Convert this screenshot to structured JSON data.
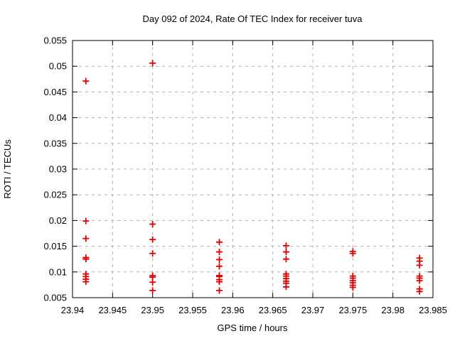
{
  "chart_data": {
    "type": "scatter",
    "title": "Day 092 of 2024, Rate Of TEC Index for receiver tuva",
    "xlabel": "GPS time / hours",
    "ylabel": "ROTI / TECUs",
    "xlim": [
      23.94,
      23.985
    ],
    "ylim": [
      0.005,
      0.055
    ],
    "xticks": [
      "23.94",
      "23.945",
      "23.95",
      "23.955",
      "23.96",
      "23.965",
      "23.97",
      "23.975",
      "23.98",
      "23.985"
    ],
    "yticks": [
      "0.005",
      "0.01",
      "0.015",
      "0.02",
      "0.025",
      "0.03",
      "0.035",
      "0.04",
      "0.045",
      "0.05",
      "0.055"
    ],
    "grid": true,
    "legend": false,
    "marker": "plus",
    "marker_color": "#e00000",
    "grid_color": "#b0b0b0",
    "border_color": "#000000",
    "series": [
      {
        "name": "ROTI",
        "points": [
          [
            23.94167,
            0.0471
          ],
          [
            23.94167,
            0.0199
          ],
          [
            23.94167,
            0.0165
          ],
          [
            23.94167,
            0.0128
          ],
          [
            23.94167,
            0.0125
          ],
          [
            23.94167,
            0.0096
          ],
          [
            23.94167,
            0.0091
          ],
          [
            23.94167,
            0.0086
          ],
          [
            23.94167,
            0.0081
          ],
          [
            23.95,
            0.0506
          ],
          [
            23.95,
            0.0193
          ],
          [
            23.95,
            0.0163
          ],
          [
            23.95,
            0.0136
          ],
          [
            23.95,
            0.0093
          ],
          [
            23.95,
            0.009
          ],
          [
            23.95,
            0.008
          ],
          [
            23.95,
            0.0064
          ],
          [
            23.95833,
            0.0158
          ],
          [
            23.95833,
            0.0139
          ],
          [
            23.95833,
            0.0124
          ],
          [
            23.95833,
            0.0111
          ],
          [
            23.95833,
            0.0093
          ],
          [
            23.95833,
            0.0091
          ],
          [
            23.95833,
            0.0085
          ],
          [
            23.95833,
            0.0081
          ],
          [
            23.95833,
            0.0064
          ],
          [
            23.96667,
            0.0151
          ],
          [
            23.96667,
            0.0139
          ],
          [
            23.96667,
            0.0125
          ],
          [
            23.96667,
            0.0096
          ],
          [
            23.96667,
            0.0092
          ],
          [
            23.96667,
            0.0087
          ],
          [
            23.96667,
            0.0082
          ],
          [
            23.96667,
            0.0078
          ],
          [
            23.96667,
            0.0071
          ],
          [
            23.975,
            0.014
          ],
          [
            23.975,
            0.0136
          ],
          [
            23.975,
            0.0092
          ],
          [
            23.975,
            0.0088
          ],
          [
            23.975,
            0.0083
          ],
          [
            23.975,
            0.0079
          ],
          [
            23.975,
            0.0074
          ],
          [
            23.975,
            0.007
          ],
          [
            23.98333,
            0.0127
          ],
          [
            23.98333,
            0.0121
          ],
          [
            23.98333,
            0.0113
          ],
          [
            23.98333,
            0.0092
          ],
          [
            23.98333,
            0.0088
          ],
          [
            23.98333,
            0.0083
          ],
          [
            23.98333,
            0.0067
          ],
          [
            23.98333,
            0.0062
          ]
        ]
      }
    ]
  }
}
